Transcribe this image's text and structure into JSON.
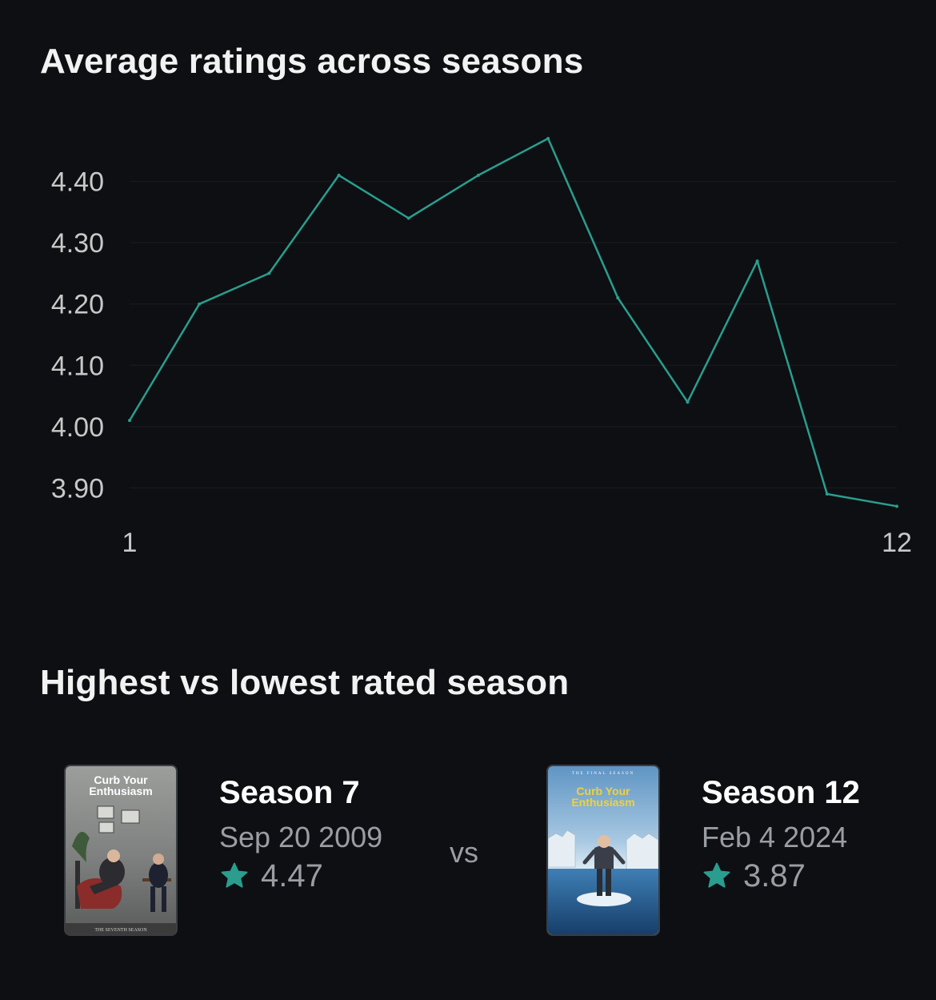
{
  "sections": {
    "average_title": "Average ratings across seasons",
    "comparison_title": "Highest vs lowest rated season"
  },
  "chart_data": {
    "type": "line",
    "title": "Average ratings across seasons",
    "x": [
      1,
      2,
      3,
      4,
      5,
      6,
      7,
      8,
      9,
      10,
      11,
      12
    ],
    "x_tick_labels": [
      "1",
      "12"
    ],
    "y_ticks": [
      4.4,
      4.3,
      4.2,
      4.1,
      4.0,
      3.9
    ],
    "y_tick_labels": [
      "4.40",
      "4.30",
      "4.20",
      "4.10",
      "4.00",
      "3.90"
    ],
    "ylim": [
      3.86,
      4.47
    ],
    "grid": true,
    "line_color": "#2a9d8f",
    "series": [
      {
        "values": [
          4.01,
          4.2,
          4.25,
          4.41,
          4.34,
          4.41,
          4.47,
          4.21,
          4.04,
          4.27,
          3.89,
          3.87
        ]
      }
    ]
  },
  "comparison": {
    "vs_label": "vs",
    "highest": {
      "season": "Season 7",
      "date": "Sep 20 2009",
      "rating": "4.47",
      "poster": {
        "title_line1": "Curb Your",
        "title_line2": "Enthusiasm",
        "tagline": "THE SEVENTH SEASON"
      }
    },
    "lowest": {
      "season": "Season 12",
      "date": "Feb 4 2024",
      "rating": "3.87",
      "poster": {
        "tagline": "THE FINAL SEASON",
        "title_line1": "Curb Your",
        "title_line2": "Enthusiasm"
      }
    }
  },
  "colors": {
    "accent": "#2a9d8f",
    "background": "#0d0f12",
    "muted_text": "#9a9da3"
  }
}
